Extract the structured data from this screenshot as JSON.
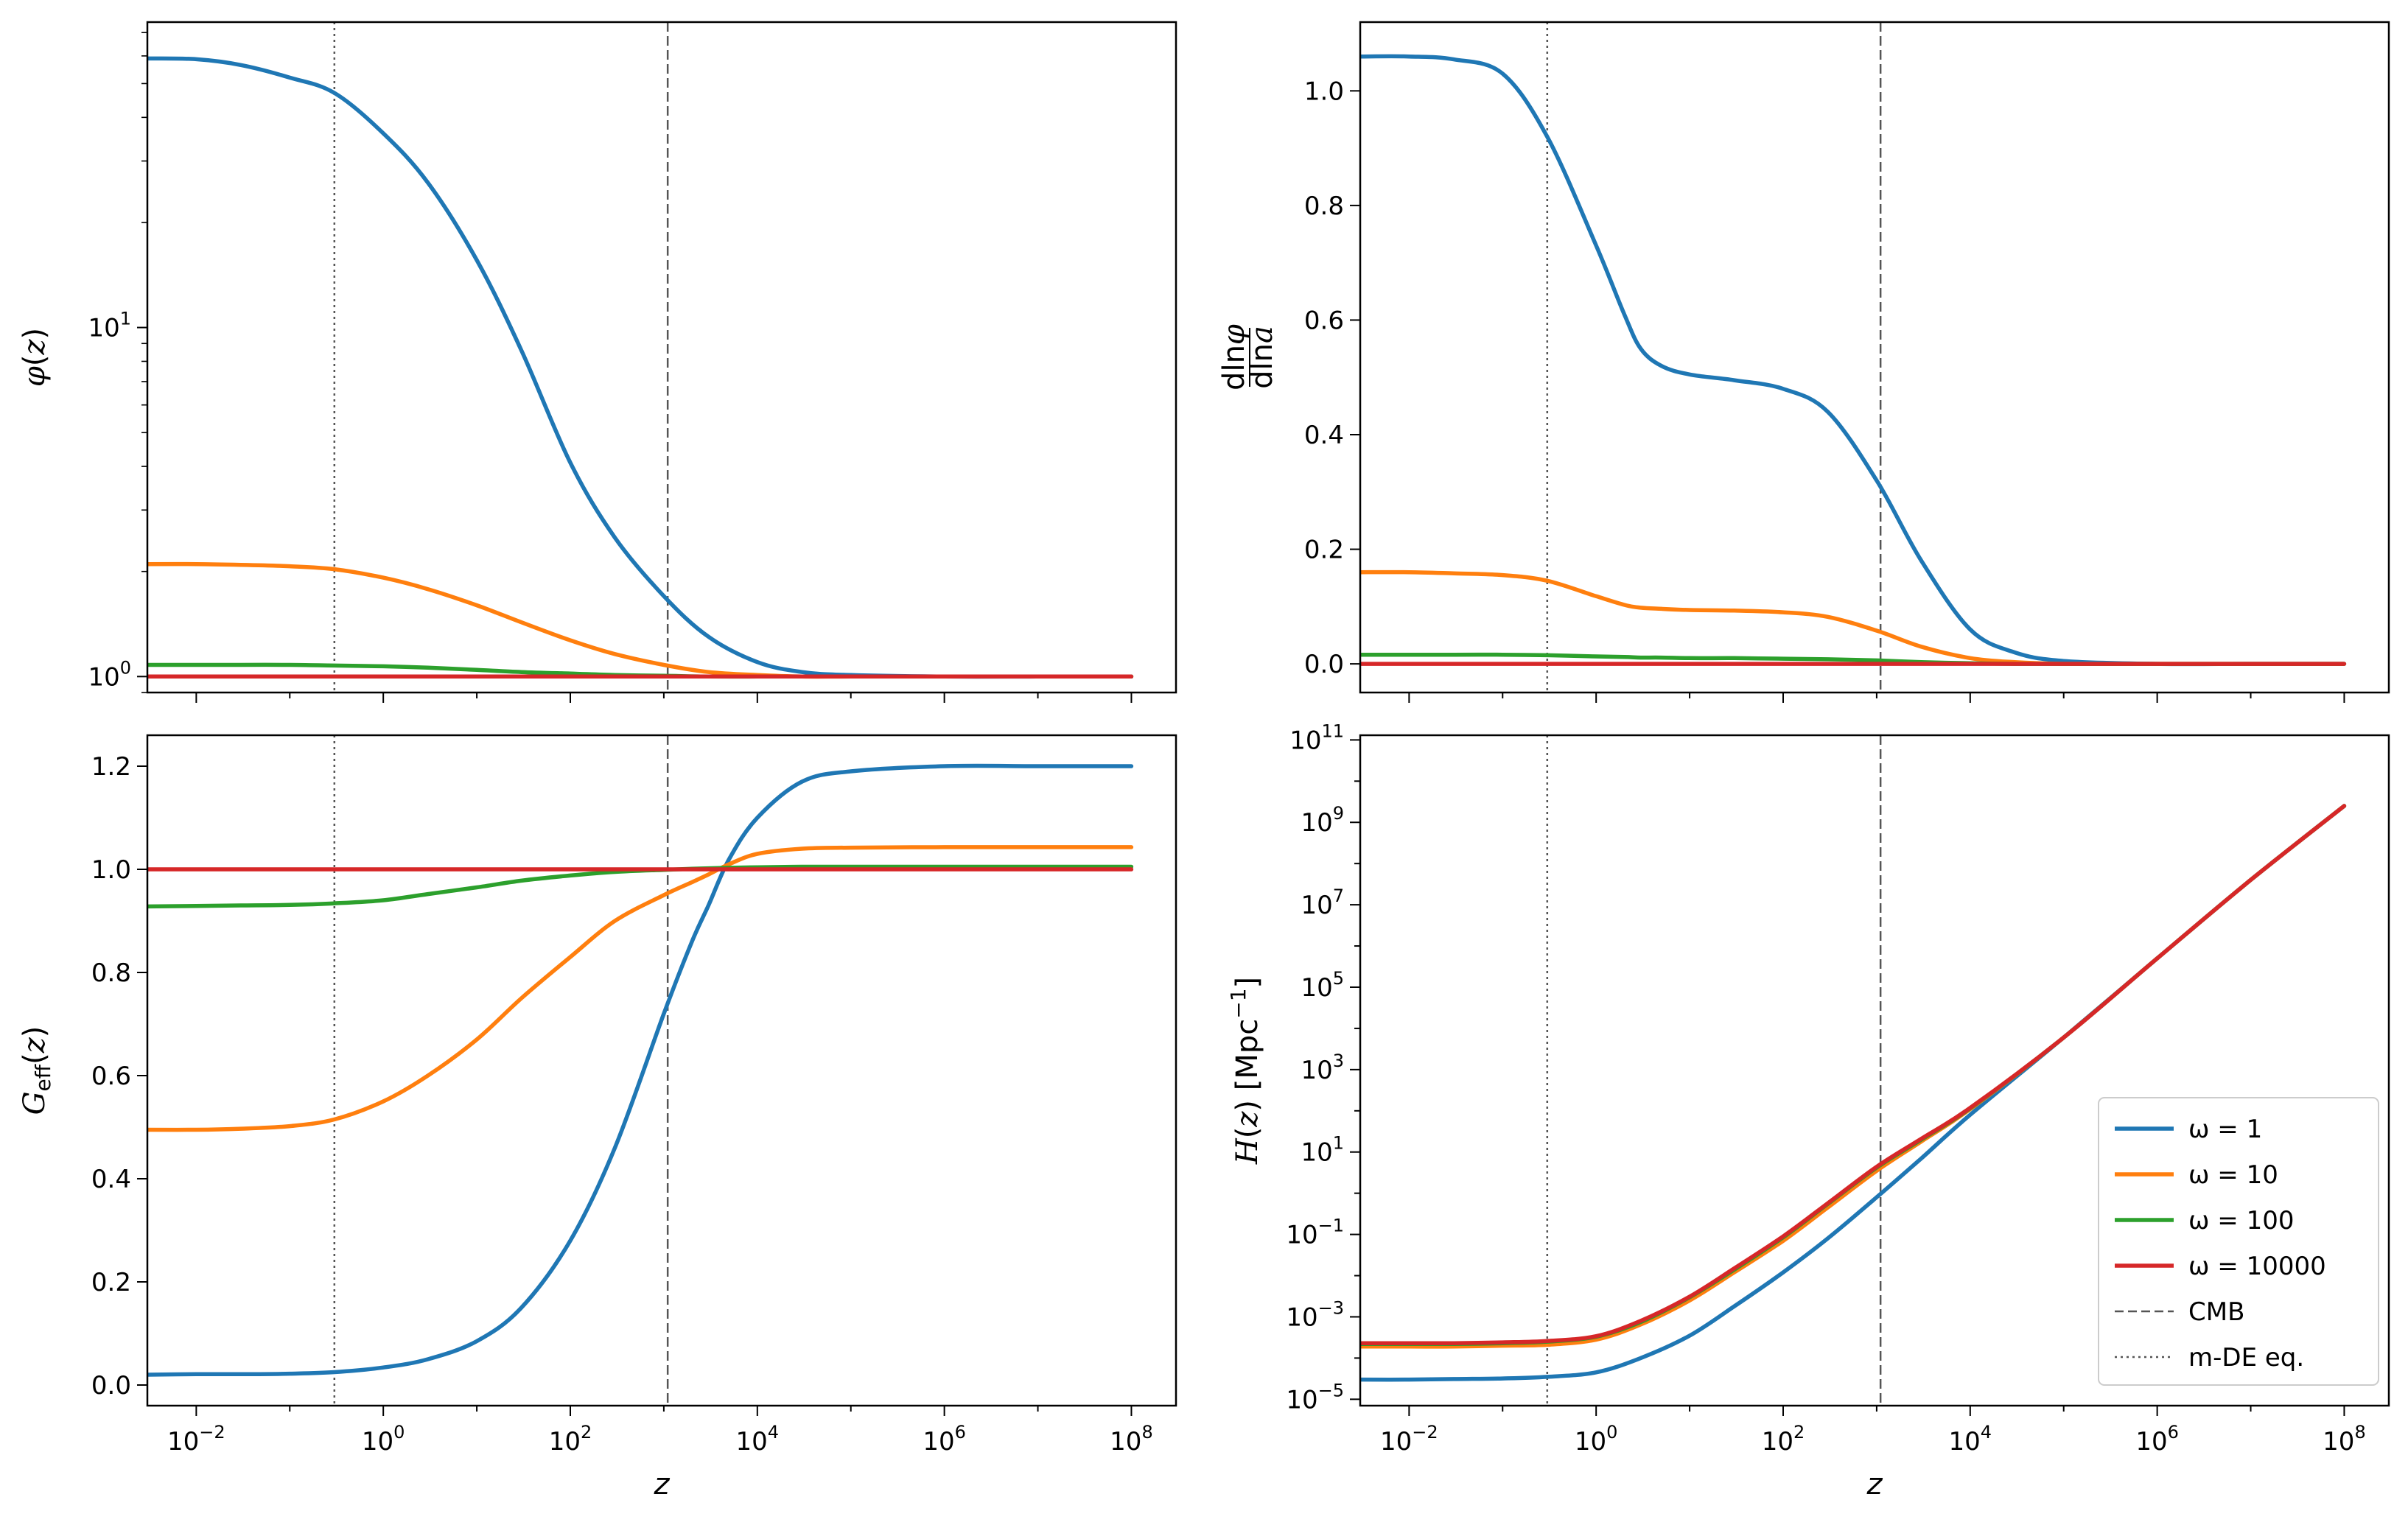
{
  "chart_data": [
    {
      "panel": "top-left",
      "type": "line",
      "title": "",
      "xlabel": "z",
      "ylabel": "φ(z)",
      "xscale": "log",
      "yscale": "log",
      "xlim": [
        0.003,
        300000000
      ],
      "ylim": [
        0.9,
        75
      ],
      "xticks": [
        "10^-2",
        "10^0",
        "10^2",
        "10^4",
        "10^6",
        "10^8"
      ],
      "yticks": [
        "10^0",
        "10^1"
      ],
      "vlines": [
        {
          "x": 0.3,
          "style": "dotted"
        },
        {
          "x": 1100,
          "style": "dashed"
        }
      ],
      "x": [
        0.003,
        0.01,
        0.03,
        0.1,
        0.3,
        1,
        3,
        10,
        30,
        100,
        300,
        1000,
        3000,
        10000,
        30000,
        100000,
        1000000,
        10000000,
        100000000
      ],
      "series": [
        {
          "name": "ω = 1",
          "color": "#1f77b4",
          "values": [
            59,
            58.7,
            56.5,
            52,
            47,
            36,
            26,
            15.6,
            8.6,
            4.1,
            2.5,
            1.7,
            1.3,
            1.1,
            1.03,
            1.01,
            1.0,
            1.0,
            1.0
          ]
        },
        {
          "name": "ω = 10",
          "color": "#ff7f0e",
          "values": [
            2.1,
            2.1,
            2.09,
            2.07,
            2.03,
            1.92,
            1.78,
            1.6,
            1.43,
            1.27,
            1.16,
            1.08,
            1.03,
            1.01,
            1.0,
            1.0,
            1.0,
            1.0,
            1.0
          ]
        },
        {
          "name": "ω = 100",
          "color": "#2ca02c",
          "values": [
            1.08,
            1.08,
            1.08,
            1.08,
            1.075,
            1.07,
            1.06,
            1.045,
            1.03,
            1.02,
            1.01,
            1.005,
            1.0,
            1.0,
            1.0,
            1.0,
            1.0,
            1.0,
            1.0
          ]
        },
        {
          "name": "ω = 10000",
          "color": "#d62728",
          "values": [
            1.0,
            1.0,
            1.0,
            1.0,
            1.0,
            1.0,
            1.0,
            1.0,
            1.0,
            1.0,
            1.0,
            1.0,
            1.0,
            1.0,
            1.0,
            1.0,
            1.0,
            1.0,
            1.0
          ]
        }
      ]
    },
    {
      "panel": "top-right",
      "type": "line",
      "title": "",
      "xlabel": "z",
      "ylabel": "dlnφ / dlna",
      "xscale": "log",
      "yscale": "linear",
      "xlim": [
        0.003,
        300000000
      ],
      "ylim": [
        -0.05,
        1.12
      ],
      "xticks": [
        "10^-2",
        "10^0",
        "10^2",
        "10^4",
        "10^6",
        "10^8"
      ],
      "yticks": [
        "0.0",
        "0.2",
        "0.4",
        "0.6",
        "0.8",
        "1.0"
      ],
      "vlines": [
        {
          "x": 0.3,
          "style": "dotted"
        },
        {
          "x": 1100,
          "style": "dashed"
        }
      ],
      "x": [
        0.003,
        0.01,
        0.03,
        0.1,
        0.3,
        1,
        2,
        3,
        5,
        10,
        30,
        100,
        300,
        1000,
        3000,
        10000,
        30000,
        100000,
        1000000,
        10000000,
        100000000
      ],
      "series": [
        {
          "name": "ω = 1",
          "color": "#1f77b4",
          "values": [
            1.06,
            1.06,
            1.055,
            1.03,
            0.92,
            0.73,
            0.61,
            0.55,
            0.52,
            0.505,
            0.495,
            0.48,
            0.44,
            0.32,
            0.18,
            0.06,
            0.02,
            0.005,
            0.0,
            0.0,
            0.0
          ]
        },
        {
          "name": "ω = 10",
          "color": "#ff7f0e",
          "values": [
            0.16,
            0.16,
            0.158,
            0.155,
            0.145,
            0.118,
            0.103,
            0.098,
            0.096,
            0.094,
            0.093,
            0.09,
            0.082,
            0.058,
            0.03,
            0.01,
            0.003,
            0.0,
            0.0,
            0.0,
            0.0
          ]
        },
        {
          "name": "ω = 100",
          "color": "#2ca02c",
          "values": [
            0.016,
            0.016,
            0.016,
            0.016,
            0.015,
            0.013,
            0.012,
            0.011,
            0.011,
            0.01,
            0.01,
            0.009,
            0.008,
            0.006,
            0.003,
            0.001,
            0.0,
            0.0,
            0.0,
            0.0,
            0.0
          ]
        },
        {
          "name": "ω = 10000",
          "color": "#d62728",
          "values": [
            0.0,
            0.0,
            0.0,
            0.0,
            0.0,
            0.0,
            0.0,
            0.0,
            0.0,
            0.0,
            0.0,
            0.0,
            0.0,
            0.0,
            0.0,
            0.0,
            0.0,
            0.0,
            0.0,
            0.0,
            0.0
          ]
        }
      ]
    },
    {
      "panel": "bottom-left",
      "type": "line",
      "title": "",
      "xlabel": "z",
      "ylabel": "G_eff(z)",
      "xscale": "log",
      "yscale": "linear",
      "xlim": [
        0.003,
        300000000
      ],
      "ylim": [
        -0.04,
        1.26
      ],
      "xticks": [
        "10^-2",
        "10^0",
        "10^2",
        "10^4",
        "10^6",
        "10^8"
      ],
      "yticks": [
        "0.0",
        "0.2",
        "0.4",
        "0.6",
        "0.8",
        "1.0",
        "1.2"
      ],
      "vlines": [
        {
          "x": 0.3,
          "style": "dotted"
        },
        {
          "x": 1100,
          "style": "dashed"
        }
      ],
      "x": [
        0.003,
        0.01,
        0.03,
        0.1,
        0.3,
        1,
        3,
        10,
        30,
        100,
        300,
        1000,
        2000,
        3000,
        5000,
        10000,
        30000,
        100000,
        1000000,
        10000000,
        100000000
      ],
      "series": [
        {
          "name": "ω = 1",
          "color": "#1f77b4",
          "values": [
            0.02,
            0.021,
            0.021,
            0.022,
            0.025,
            0.034,
            0.05,
            0.085,
            0.15,
            0.28,
            0.46,
            0.72,
            0.86,
            0.93,
            1.02,
            1.1,
            1.17,
            1.19,
            1.2,
            1.2,
            1.2
          ]
        },
        {
          "name": "ω = 10",
          "color": "#ff7f0e",
          "values": [
            0.495,
            0.495,
            0.497,
            0.502,
            0.515,
            0.55,
            0.6,
            0.67,
            0.75,
            0.83,
            0.9,
            0.95,
            0.975,
            0.99,
            1.01,
            1.03,
            1.04,
            1.042,
            1.043,
            1.043,
            1.043
          ]
        },
        {
          "name": "ω = 100",
          "color": "#2ca02c",
          "values": [
            0.928,
            0.929,
            0.93,
            0.931,
            0.934,
            0.94,
            0.952,
            0.965,
            0.978,
            0.988,
            0.995,
            0.999,
            1.001,
            1.002,
            1.003,
            1.004,
            1.005,
            1.005,
            1.005,
            1.005,
            1.005
          ]
        },
        {
          "name": "ω = 10000",
          "color": "#d62728",
          "values": [
            1.0,
            1.0,
            1.0,
            1.0,
            1.0,
            1.0,
            1.0,
            1.0,
            1.0,
            1.0,
            1.0,
            1.0,
            1.0,
            1.0,
            1.0,
            1.0,
            1.0,
            1.0,
            1.0,
            1.0,
            1.0
          ]
        }
      ]
    },
    {
      "panel": "bottom-right",
      "type": "line",
      "title": "",
      "xlabel": "z",
      "ylabel": "H(z) [Mpc^-1]",
      "xscale": "log",
      "yscale": "log",
      "xlim": [
        0.003,
        300000000
      ],
      "ylim": [
        7e-06,
        130000000000
      ],
      "xticks": [
        "10^-2",
        "10^0",
        "10^2",
        "10^4",
        "10^6",
        "10^8"
      ],
      "yticks": [
        "10^-5",
        "10^-3",
        "10^-1",
        "10^1",
        "10^3",
        "10^5",
        "10^7",
        "10^9",
        "10^11"
      ],
      "vlines": [
        {
          "x": 0.3,
          "style": "dotted"
        },
        {
          "x": 1100,
          "style": "dashed"
        }
      ],
      "x": [
        0.003,
        0.01,
        0.03,
        0.1,
        0.3,
        1,
        3,
        10,
        30,
        100,
        300,
        1000,
        3000,
        10000,
        100000,
        1000000,
        10000000,
        100000000
      ],
      "series": [
        {
          "name": "ω = 1",
          "color": "#1f77b4",
          "values": [
            3e-05,
            3e-05,
            3.1e-05,
            3.2e-05,
            3.5e-05,
            4.5e-05,
            0.0001,
            0.00035,
            0.0018,
            0.012,
            0.08,
            0.8,
            7,
            80,
            6000,
            500000,
            40000000,
            2500000000
          ]
        },
        {
          "name": "ω = 10",
          "color": "#ff7f0e",
          "values": [
            0.00019,
            0.00019,
            0.00019,
            0.0002,
            0.00021,
            0.00028,
            0.00065,
            0.0025,
            0.012,
            0.07,
            0.45,
            3.5,
            18,
            110,
            6000,
            500000,
            40000000,
            2500000000
          ]
        },
        {
          "name": "ω = 100",
          "color": "#2ca02c",
          "values": [
            0.00022,
            0.00022,
            0.00022,
            0.00023,
            0.00025,
            0.00033,
            0.00075,
            0.003,
            0.014,
            0.085,
            0.55,
            4.2,
            20,
            115,
            6000,
            500000,
            40000000,
            2500000000
          ]
        },
        {
          "name": "ω = 10000",
          "color": "#d62728",
          "values": [
            0.00023,
            0.00023,
            0.00023,
            0.00024,
            0.00026,
            0.00034,
            0.0008,
            0.0031,
            0.015,
            0.09,
            0.57,
            4.4,
            21,
            118,
            6000,
            500000,
            40000000,
            2500000000
          ]
        }
      ]
    }
  ],
  "legend": {
    "placement": "lower right",
    "entries": [
      {
        "label": "ω = 1",
        "color": "#1f77b4",
        "style": "solid"
      },
      {
        "label": "ω = 10",
        "color": "#ff7f0e",
        "style": "solid"
      },
      {
        "label": "ω = 100",
        "color": "#2ca02c",
        "style": "solid"
      },
      {
        "label": "ω = 10000",
        "color": "#d62728",
        "style": "solid"
      },
      {
        "label": "CMB",
        "color": "#555555",
        "style": "dashed"
      },
      {
        "label": "m-DE eq.",
        "color": "#555555",
        "style": "dotted"
      }
    ]
  }
}
